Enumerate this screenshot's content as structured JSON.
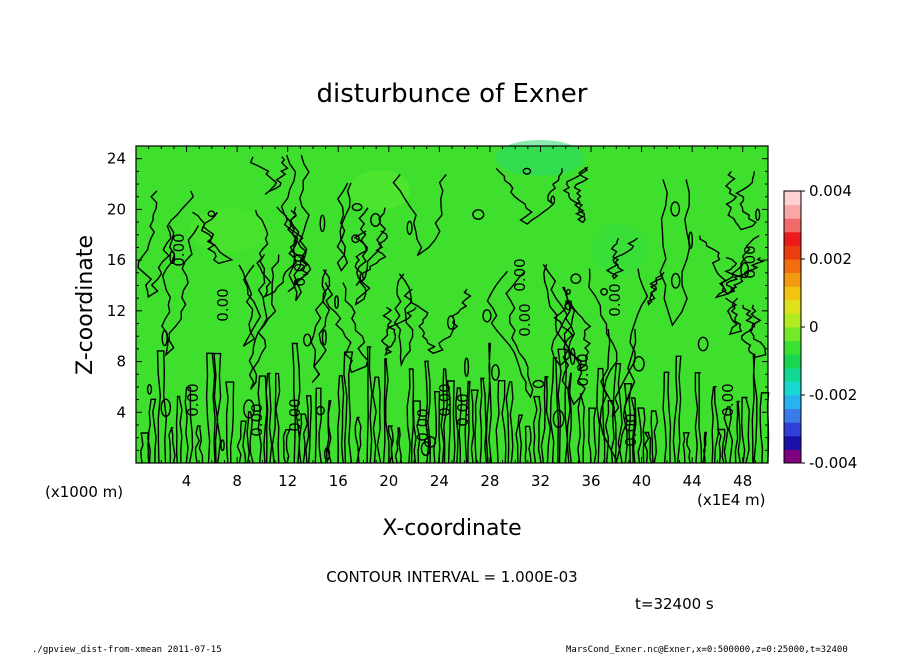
{
  "chart_data": {
    "type": "heatmap",
    "title": "disturbunce of Exner",
    "xlabel": "X-coordinate",
    "ylabel": "Z-coordinate",
    "x_unit_label": "(x1E4 m)",
    "y_unit_label": "(x1000 m)",
    "x_ticks": [
      "4",
      "8",
      "12",
      "16",
      "20",
      "24",
      "28",
      "32",
      "36",
      "40",
      "44",
      "48"
    ],
    "x_tick_values": [
      4,
      8,
      12,
      16,
      20,
      24,
      28,
      32,
      36,
      40,
      44,
      48
    ],
    "xlim": [
      0,
      50
    ],
    "y_ticks": [
      "4",
      "8",
      "12",
      "16",
      "20",
      "24"
    ],
    "y_tick_values": [
      4,
      8,
      12,
      16,
      20,
      24
    ],
    "ylim": [
      0,
      25
    ],
    "contour_label": "0.00",
    "contour_interval_text": "CONTOUR INTERVAL = 1.000E-03",
    "colorbar": {
      "tick_labels": [
        "0.004",
        "0.002",
        "0",
        "-0.002",
        "-0.004"
      ],
      "tick_values": [
        0.004,
        0.002,
        0,
        -0.002,
        -0.004
      ],
      "range": [
        -0.004,
        0.004
      ],
      "colors": [
        "#800080",
        "#1a0fa8",
        "#2f3fd8",
        "#3a7be8",
        "#27b2f0",
        "#16d9d2",
        "#10d993",
        "#19d650",
        "#39e133",
        "#72ea28",
        "#b0ec20",
        "#dde21a",
        "#f3c311",
        "#f39a10",
        "#f06d10",
        "#ed3c10",
        "#ec1b1b",
        "#f36a6a",
        "#f9a7a7",
        "#fdd2d2"
      ]
    },
    "field_color": "#3ee02d"
  },
  "time_label": "t=32400 s",
  "footer": {
    "left": "./gpview_dist-from-xmean   2011-07-15",
    "right": "MarsCond_Exner.nc@Exner,x=0:500000,z=0:25000,t=32400"
  }
}
